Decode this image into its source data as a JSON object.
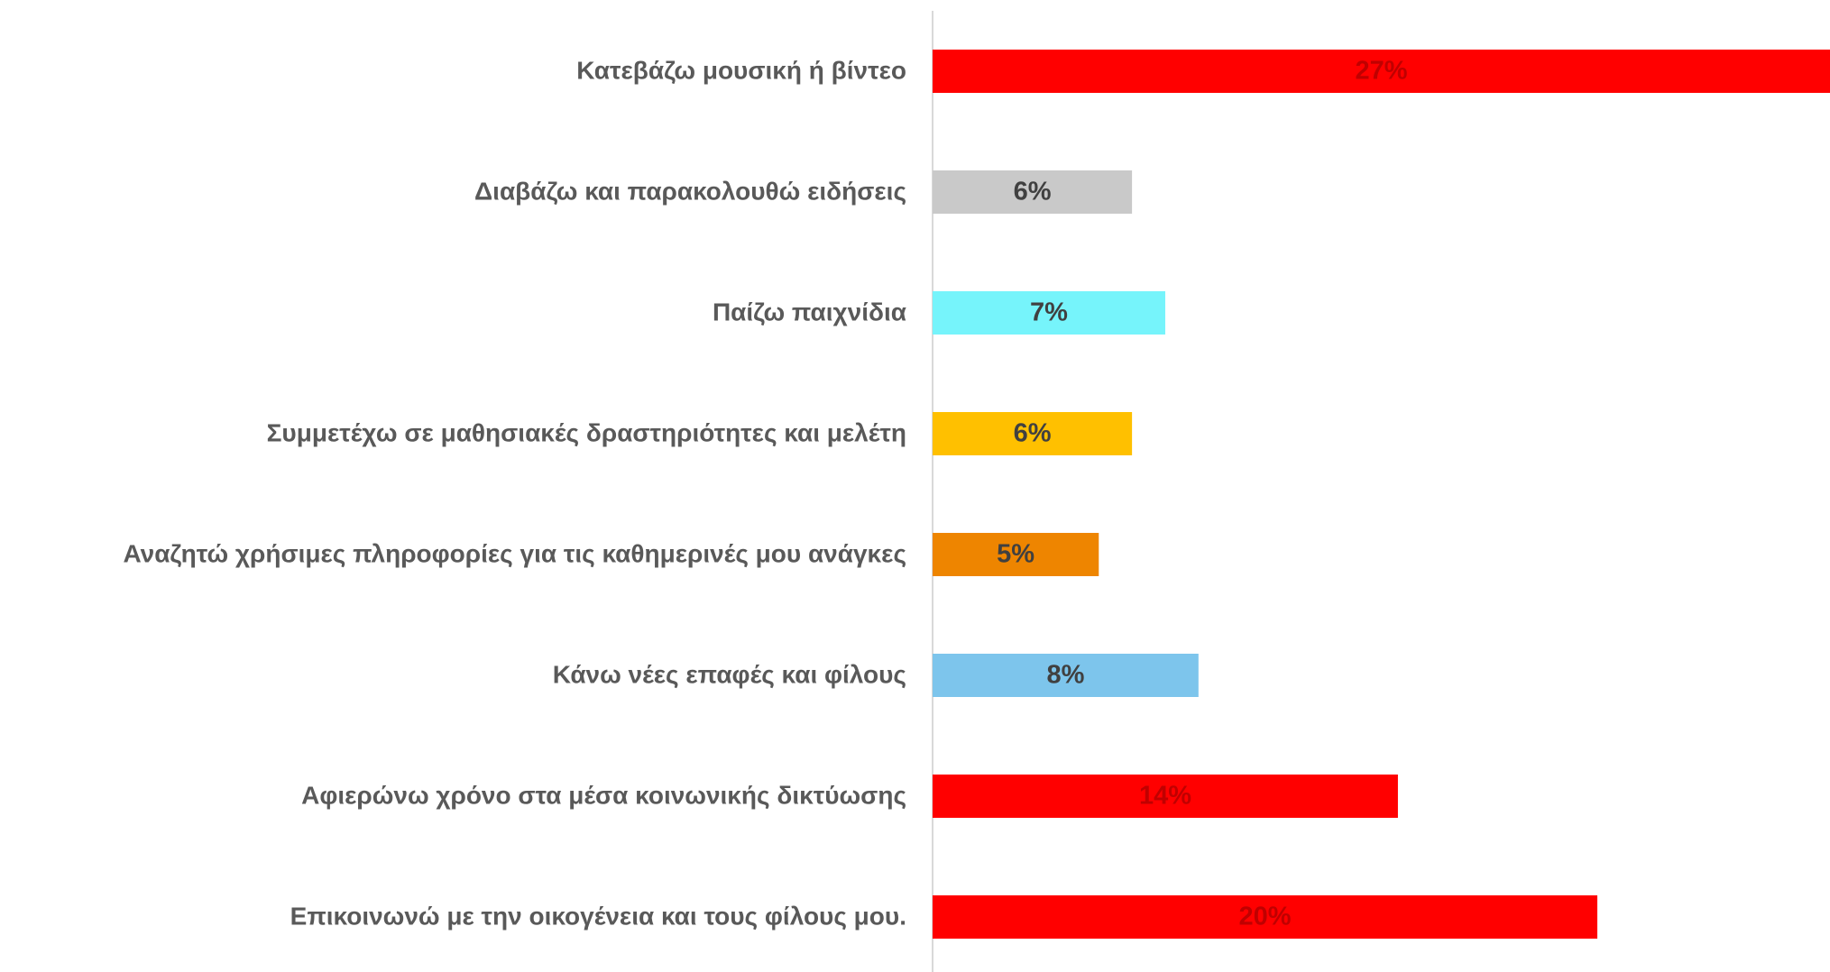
{
  "chart_data": {
    "type": "hbar",
    "categories": [
      "Κατεβάζω μουσική ή βίντεο",
      "Διαβάζω και παρακολουθώ ειδήσεις",
      "Παίζω παιχνίδια",
      "Συμμετέχω σε μαθησιακές δραστηριότητες και μελέτη",
      "Αναζητώ χρήσιμες πληροφορίες για τις καθημερινές μου ανάγκες",
      "Κάνω νέες επαφές και φίλους",
      "Αφιερώνω χρόνο στα μέσα κοινωνικής δικτύωσης",
      "Επικοινωνώ με την οικογένεια και τους φίλους μου."
    ],
    "values": [
      27,
      6,
      7,
      6,
      5,
      8,
      14,
      20
    ],
    "value_labels": [
      "27%",
      "6%",
      "7%",
      "6%",
      "5%",
      "8%",
      "14%",
      "20%"
    ],
    "colors": [
      "#ff0000",
      "#c9c9c9",
      "#76f4fb",
      "#ffc000",
      "#ee8500",
      "#7dc5ec",
      "#ff0000",
      "#ff0000"
    ],
    "value_label_colors": [
      "#c00000",
      "#404040",
      "#404040",
      "#404040",
      "#404040",
      "#404040",
      "#c00000",
      "#c00000"
    ]
  }
}
